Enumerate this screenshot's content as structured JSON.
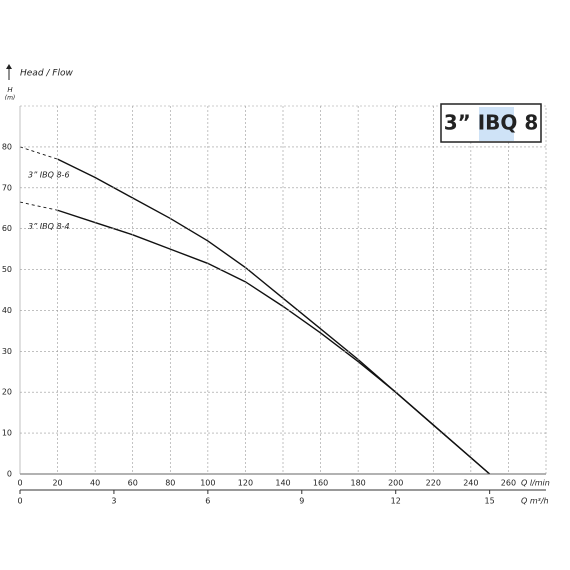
{
  "chart_data": {
    "type": "line",
    "title": "3” IBQ 8",
    "y_label": "Head / Flow",
    "y_symbol": "H",
    "y_unit": "(m)",
    "x_label": "Q l/min",
    "x2_label": "Q m³/h",
    "x": [
      0,
      20,
      40,
      60,
      80,
      100,
      120,
      140,
      160,
      180,
      200,
      220,
      240,
      250
    ],
    "series": [
      {
        "name": "3” IBQ 8-6",
        "color": "#111111",
        "values": [
          80,
          77,
          72.5,
          67.5,
          62.5,
          57,
          50.5,
          43,
          35.5,
          28,
          20,
          12,
          4,
          0
        ]
      },
      {
        "name": "3” IBQ 8-4",
        "color": "#111111",
        "values": [
          66.5,
          64.5,
          61.5,
          58.5,
          55,
          51.5,
          47,
          41,
          34.5,
          27.5,
          20,
          12,
          4,
          0
        ]
      }
    ],
    "xlim": [
      0,
      280
    ],
    "xticks": [
      0,
      20,
      40,
      60,
      80,
      100,
      120,
      140,
      160,
      180,
      200,
      220,
      240,
      260
    ],
    "x2lim": [
      0,
      16.8
    ],
    "x2ticks": [
      0,
      3,
      6,
      9,
      12,
      15
    ],
    "ylim": [
      0,
      90
    ],
    "yticks": [
      0,
      10,
      20,
      30,
      40,
      50,
      60,
      70,
      80
    ],
    "grid": true
  }
}
